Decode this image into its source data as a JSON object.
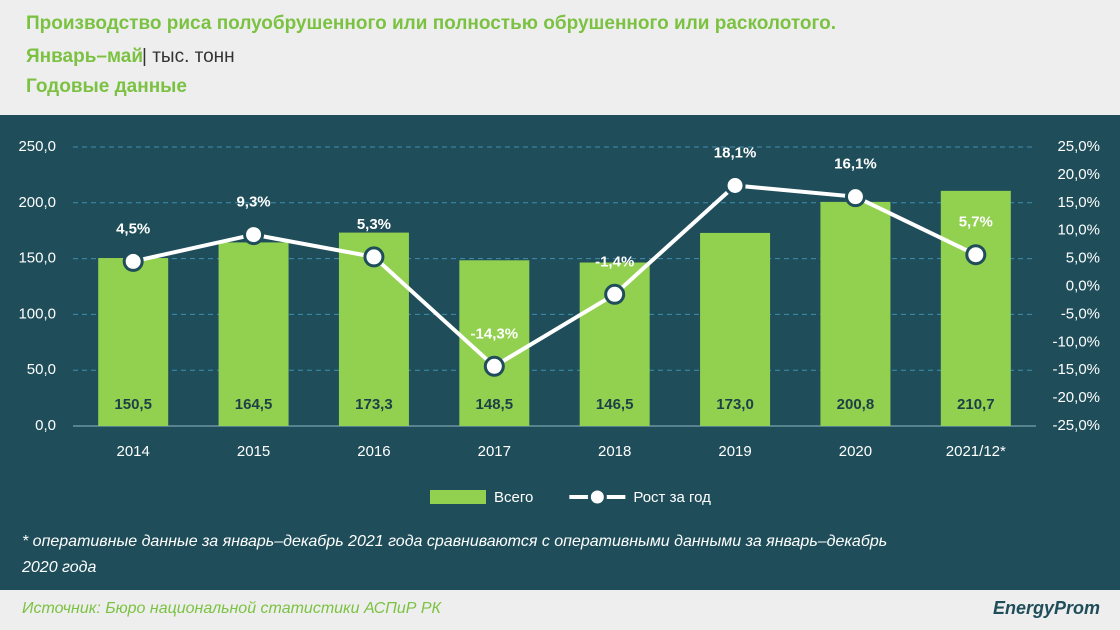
{
  "chart_data": {
    "type": "combo",
    "title": "Производство риса полуобрушенного или полностью обрушенного или расколотого.",
    "period": "Январь–май",
    "unit": "| тыс. тонн",
    "subtitle": "Годовые данные",
    "categories": [
      "2014",
      "2015",
      "2016",
      "2017",
      "2018",
      "2019",
      "2020",
      "2021/12*"
    ],
    "series": [
      {
        "name": "Всего",
        "type": "bar",
        "color": "#92d050",
        "values": [
          150.5,
          164.5,
          173.3,
          148.5,
          146.5,
          173.0,
          200.8,
          210.7
        ],
        "value_labels": [
          "150,5",
          "164,5",
          "173,3",
          "148,5",
          "146,5",
          "173,0",
          "200,8",
          "210,7"
        ]
      },
      {
        "name": "Рост за год",
        "type": "line",
        "axis": "y2",
        "color": "#ffffff",
        "values": [
          4.5,
          9.3,
          5.3,
          -14.3,
          -1.4,
          18.1,
          16.1,
          5.7
        ],
        "value_labels": [
          "4,5%",
          "9,3%",
          "5,3%",
          "-14,3%",
          "-1,4%",
          "18,1%",
          "16,1%",
          "5,7%"
        ]
      }
    ],
    "ylim": [
      0,
      250
    ],
    "yticks": [
      {
        "value": 0,
        "label": "0,0"
      },
      {
        "value": 50,
        "label": "50,0"
      },
      {
        "value": 100,
        "label": "100,0"
      },
      {
        "value": 150,
        "label": "150,0"
      },
      {
        "value": 200,
        "label": "200,0"
      },
      {
        "value": 250,
        "label": "250,0"
      }
    ],
    "y2lim": [
      -25,
      25
    ],
    "y2ticks": [
      {
        "value": -25,
        "label": "-25,0%"
      },
      {
        "value": -20,
        "label": "-20,0%"
      },
      {
        "value": -15,
        "label": "-15,0%"
      },
      {
        "value": -10,
        "label": "-10,0%"
      },
      {
        "value": -5,
        "label": "-5,0%"
      },
      {
        "value": 0,
        "label": "0,0%"
      },
      {
        "value": 5,
        "label": "5,0%"
      },
      {
        "value": 10,
        "label": "10,0%"
      },
      {
        "value": 15,
        "label": "15,0%"
      },
      {
        "value": 20,
        "label": "20,0%"
      },
      {
        "value": 25,
        "label": "25,0%"
      }
    ],
    "grid": true,
    "legend": "bottom",
    "footnote": "* оперативные данные за январь–декабрь 2021 года сравниваются с оперативными данными за январь–декабрь 2020 года",
    "source": "Источник: Бюро национальной статистики АСПиР РК",
    "logo": "EnergyProm"
  }
}
